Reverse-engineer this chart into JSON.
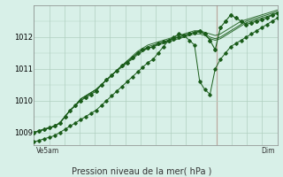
{
  "title": "Pression niveau de la mer( hPa )",
  "xlabel_left": "Ve5am",
  "xlabel_right": "Dim",
  "ylim": [
    1008.6,
    1013.0
  ],
  "xlim": [
    0,
    48
  ],
  "yticks": [
    1009,
    1010,
    1011,
    1012
  ],
  "bg_color": "#d8f0e8",
  "grid_color": "#b0cfc0",
  "line_color": "#1a5c1a",
  "vline_x": 36,
  "series": [
    [
      1009.0,
      1009.05,
      1009.1,
      1009.15,
      1009.2,
      1009.3,
      1009.5,
      1009.7,
      1009.85,
      1010.0,
      1010.1,
      1010.2,
      1010.3,
      1010.5,
      1010.65,
      1010.8,
      1010.95,
      1011.1,
      1011.2,
      1011.35,
      1011.5,
      1011.6,
      1011.65,
      1011.7,
      1011.8,
      1011.85,
      1011.9,
      1011.95,
      1012.0,
      1012.05,
      1012.1,
      1012.15,
      1012.2,
      1012.1,
      1011.9,
      1011.6,
      1012.3,
      1012.5,
      1012.7,
      1012.6,
      1012.5,
      1012.4,
      1012.45,
      1012.5,
      1012.55,
      1012.6,
      1012.7,
      1012.75
    ],
    [
      1008.7,
      1008.75,
      1008.8,
      1008.85,
      1008.9,
      1009.0,
      1009.1,
      1009.2,
      1009.3,
      1009.4,
      1009.5,
      1009.6,
      1009.7,
      1009.85,
      1010.0,
      1010.15,
      1010.3,
      1010.45,
      1010.6,
      1010.75,
      1010.9,
      1011.05,
      1011.2,
      1011.3,
      1011.5,
      1011.7,
      1011.9,
      1012.0,
      1012.1,
      1012.05,
      1011.9,
      1011.75,
      1010.6,
      1010.35,
      1010.2,
      1011.0,
      1011.3,
      1011.5,
      1011.7,
      1011.8,
      1011.9,
      1012.0,
      1012.1,
      1012.2,
      1012.3,
      1012.4,
      1012.5,
      1012.6
    ],
    [
      1009.0,
      1009.05,
      1009.1,
      1009.15,
      1009.2,
      1009.3,
      1009.5,
      1009.7,
      1009.85,
      1010.05,
      1010.15,
      1010.25,
      1010.35,
      1010.5,
      1010.65,
      1010.8,
      1010.95,
      1011.1,
      1011.25,
      1011.4,
      1011.55,
      1011.65,
      1011.75,
      1011.8,
      1011.85,
      1011.9,
      1011.95,
      1012.0,
      1012.05,
      1012.1,
      1012.15,
      1012.2,
      1012.2,
      1012.15,
      1012.1,
      1012.05,
      1012.1,
      1012.2,
      1012.3,
      1012.4,
      1012.5,
      1012.55,
      1012.6,
      1012.65,
      1012.7,
      1012.75,
      1012.8,
      1012.85
    ],
    [
      1009.0,
      1009.05,
      1009.1,
      1009.15,
      1009.2,
      1009.3,
      1009.5,
      1009.7,
      1009.85,
      1010.05,
      1010.15,
      1010.25,
      1010.35,
      1010.5,
      1010.65,
      1010.8,
      1010.95,
      1011.1,
      1011.25,
      1011.35,
      1011.5,
      1011.6,
      1011.7,
      1011.75,
      1011.8,
      1011.85,
      1011.9,
      1011.95,
      1012.0,
      1012.05,
      1012.1,
      1012.15,
      1012.15,
      1012.1,
      1012.0,
      1011.95,
      1012.0,
      1012.1,
      1012.2,
      1012.3,
      1012.4,
      1012.5,
      1012.55,
      1012.6,
      1012.65,
      1012.7,
      1012.75,
      1012.8
    ],
    [
      1009.0,
      1009.05,
      1009.1,
      1009.15,
      1009.2,
      1009.3,
      1009.5,
      1009.7,
      1009.85,
      1010.05,
      1010.15,
      1010.25,
      1010.35,
      1010.5,
      1010.65,
      1010.8,
      1010.95,
      1011.05,
      1011.2,
      1011.3,
      1011.45,
      1011.55,
      1011.65,
      1011.7,
      1011.75,
      1011.8,
      1011.85,
      1011.9,
      1011.95,
      1012.0,
      1012.05,
      1012.1,
      1012.1,
      1012.05,
      1011.95,
      1011.9,
      1011.95,
      1012.05,
      1012.15,
      1012.25,
      1012.35,
      1012.45,
      1012.5,
      1012.55,
      1012.6,
      1012.65,
      1012.7,
      1012.75
    ]
  ]
}
